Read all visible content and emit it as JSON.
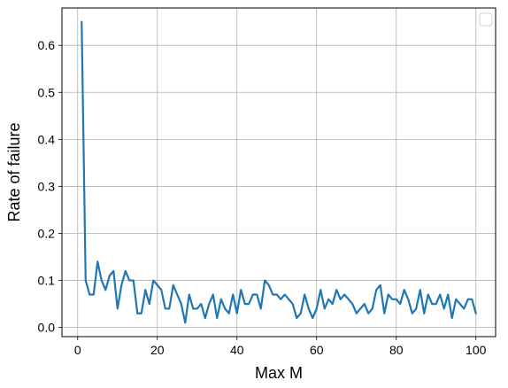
{
  "chart_data": {
    "type": "line",
    "title": "",
    "xlabel": "Max M",
    "ylabel": "Rate of failure",
    "xlim": [
      -3.95,
      104.95
    ],
    "ylim": [
      -0.0195,
      0.6795
    ],
    "xticks": [
      0,
      20,
      40,
      60,
      80,
      100
    ],
    "yticks": [
      0.0,
      0.1,
      0.2,
      0.3,
      0.4,
      0.5,
      0.6
    ],
    "xtick_labels": [
      "0",
      "20",
      "40",
      "60",
      "80",
      "100"
    ],
    "ytick_labels": [
      "0.0",
      "0.1",
      "0.2",
      "0.3",
      "0.4",
      "0.5",
      "0.6"
    ],
    "grid": true,
    "legend": "top-right (empty)",
    "series": [
      {
        "color": "#1f77b4",
        "x": [
          1,
          2,
          3,
          4,
          5,
          6,
          7,
          8,
          9,
          10,
          11,
          12,
          13,
          14,
          15,
          16,
          17,
          18,
          19,
          20,
          21,
          22,
          23,
          24,
          25,
          26,
          27,
          28,
          29,
          30,
          31,
          32,
          33,
          34,
          35,
          36,
          37,
          38,
          39,
          40,
          41,
          42,
          43,
          44,
          45,
          46,
          47,
          48,
          49,
          50,
          51,
          52,
          53,
          54,
          55,
          56,
          57,
          58,
          59,
          60,
          61,
          62,
          63,
          64,
          65,
          66,
          67,
          68,
          69,
          70,
          71,
          72,
          73,
          74,
          75,
          76,
          77,
          78,
          79,
          80,
          81,
          82,
          83,
          84,
          85,
          86,
          87,
          88,
          89,
          90,
          91,
          92,
          93,
          94,
          95,
          96,
          97,
          98,
          99,
          100
        ],
        "y": [
          0.65,
          0.1,
          0.07,
          0.07,
          0.14,
          0.1,
          0.08,
          0.11,
          0.12,
          0.04,
          0.09,
          0.12,
          0.1,
          0.1,
          0.03,
          0.03,
          0.08,
          0.05,
          0.1,
          0.09,
          0.08,
          0.04,
          0.04,
          0.09,
          0.07,
          0.05,
          0.01,
          0.07,
          0.04,
          0.04,
          0.05,
          0.02,
          0.05,
          0.07,
          0.02,
          0.06,
          0.04,
          0.03,
          0.07,
          0.03,
          0.08,
          0.05,
          0.05,
          0.07,
          0.07,
          0.04,
          0.1,
          0.09,
          0.07,
          0.07,
          0.06,
          0.07,
          0.06,
          0.05,
          0.02,
          0.03,
          0.07,
          0.04,
          0.02,
          0.04,
          0.08,
          0.04,
          0.06,
          0.05,
          0.08,
          0.06,
          0.07,
          0.06,
          0.05,
          0.03,
          0.04,
          0.05,
          0.03,
          0.04,
          0.08,
          0.09,
          0.03,
          0.07,
          0.06,
          0.06,
          0.05,
          0.08,
          0.06,
          0.03,
          0.04,
          0.08,
          0.03,
          0.07,
          0.05,
          0.05,
          0.07,
          0.04,
          0.07,
          0.02,
          0.06,
          0.05,
          0.04,
          0.06,
          0.06,
          0.03
        ]
      }
    ]
  }
}
